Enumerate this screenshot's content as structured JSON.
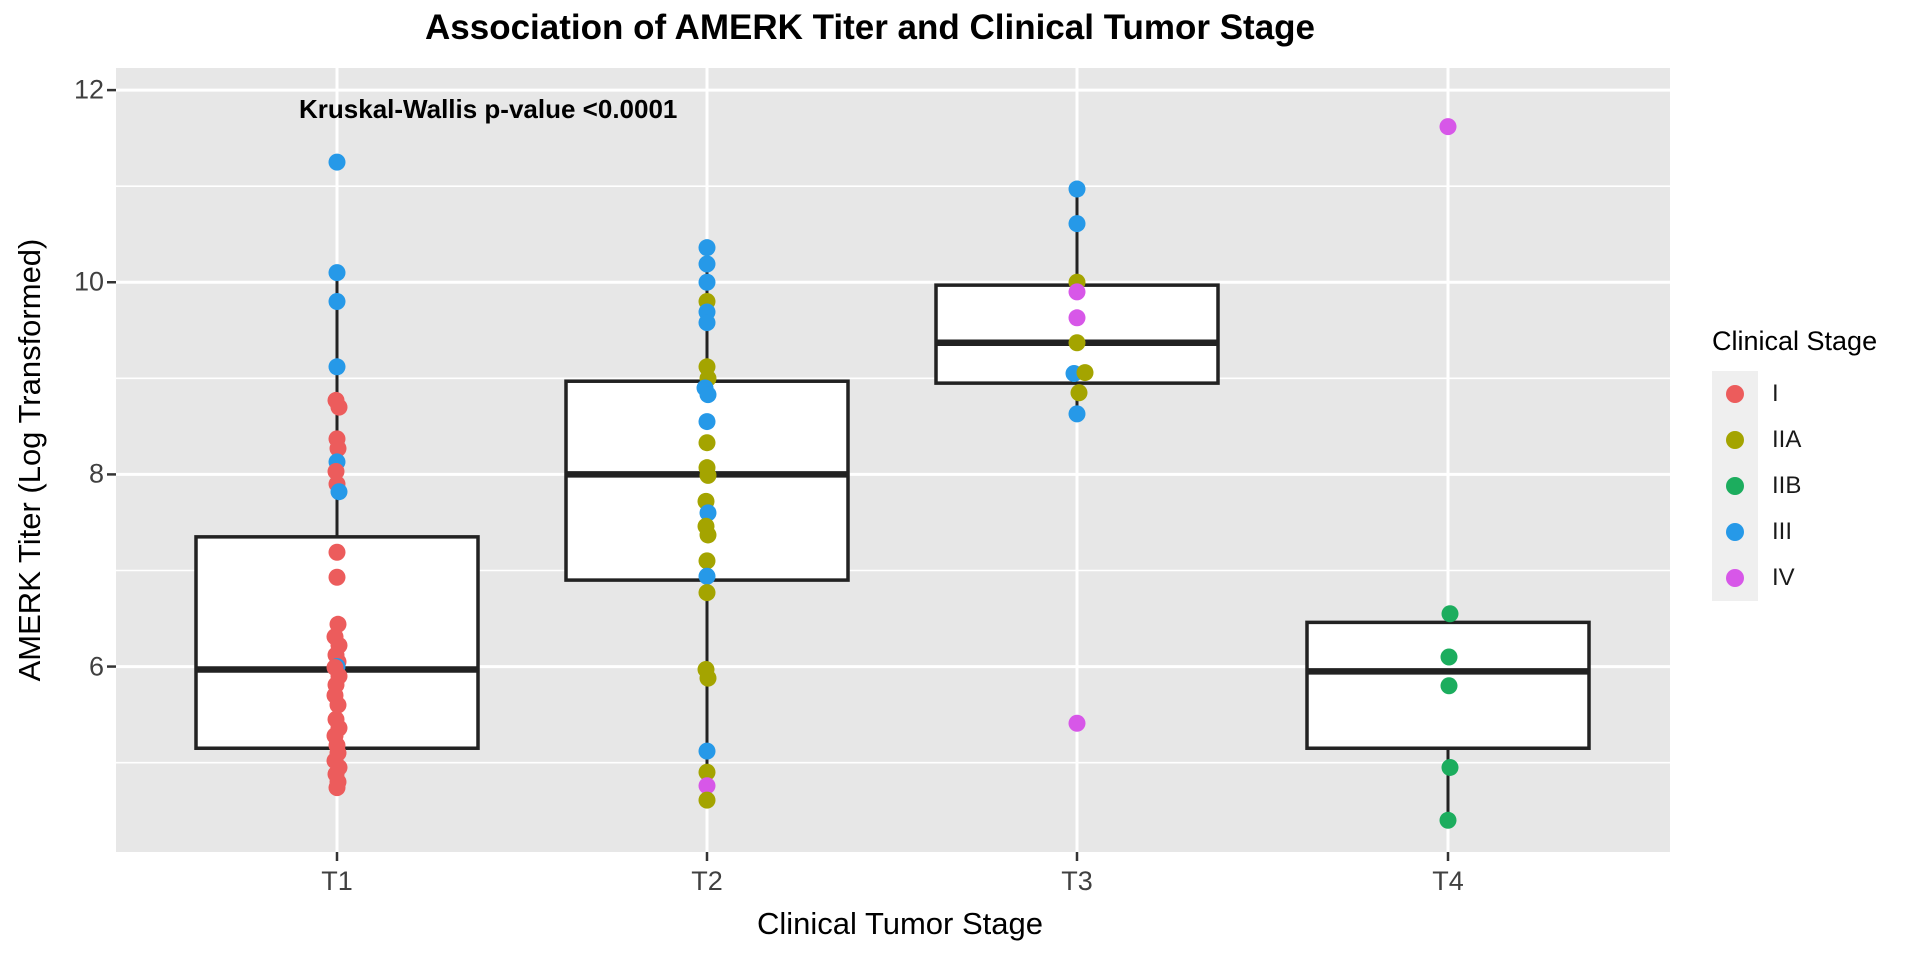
{
  "title": "Association of AMERK Titer and Clinical Tumor Stage",
  "annotation": "Kruskal-Wallis p-value <0.0001",
  "x_axis": {
    "label": "Clinical Tumor Stage",
    "tick_labels": [
      "T1",
      "T2",
      "T3",
      "T4"
    ]
  },
  "y_axis": {
    "label": "AMERK Titer (Log Transformed)",
    "tick_labels": [
      "12",
      "10",
      "8",
      "6"
    ],
    "tick_values": [
      12,
      10,
      8,
      6
    ]
  },
  "legend": {
    "title": "Clinical Stage",
    "items": [
      {
        "label": "I",
        "color": "#EC5C5C"
      },
      {
        "label": "IIA",
        "color": "#A4A400"
      },
      {
        "label": "IIB",
        "color": "#1CAD5E"
      },
      {
        "label": "III",
        "color": "#2699E8"
      },
      {
        "label": "IV",
        "color": "#D757E8"
      }
    ]
  },
  "chart_data": {
    "type": "boxplot-with-jittered-points",
    "title": "Association of AMERK Titer and Clinical Tumor Stage",
    "xlabel": "Clinical Tumor Stage",
    "ylabel": "AMERK Titer (Log Transformed)",
    "categories": [
      "T1",
      "T2",
      "T3",
      "T4"
    ],
    "ylim": [
      4.07,
      12.23
    ],
    "major_gridlines_y": [
      6,
      8,
      10,
      12
    ],
    "minor_gridlines_y": [
      5,
      7,
      9,
      11
    ],
    "grid": "on",
    "legend_position": "right",
    "annotation": "Kruskal-Wallis p-value <0.0001",
    "groups": [
      {
        "category": "T1",
        "box": {
          "q1": 5.15,
          "median": 5.97,
          "q3": 7.35,
          "whisker_low": 4.74,
          "whisker_high": 10.1
        },
        "points": [
          [
            "III",
            11.25,
            0
          ],
          [
            "III",
            10.1,
            0
          ],
          [
            "III",
            9.8,
            0
          ],
          [
            "III",
            9.12,
            0
          ],
          [
            "I",
            8.77,
            -1
          ],
          [
            "I",
            8.7,
            2
          ],
          [
            "I",
            8.37,
            0
          ],
          [
            "I",
            8.27,
            1
          ],
          [
            "III",
            8.13,
            0
          ],
          [
            "I",
            8.03,
            -1
          ],
          [
            "I",
            7.9,
            0
          ],
          [
            "III",
            7.82,
            2
          ],
          [
            "I",
            7.19,
            0
          ],
          [
            "I",
            6.93,
            0
          ],
          [
            "I",
            6.44,
            1
          ],
          [
            "I",
            6.31,
            -2
          ],
          [
            "I",
            6.22,
            2
          ],
          [
            "I",
            6.12,
            -1
          ],
          [
            "I",
            6.05,
            1
          ],
          [
            "III",
            6.0,
            0
          ],
          [
            "I",
            5.99,
            -2
          ],
          [
            "I",
            5.9,
            2
          ],
          [
            "I",
            5.81,
            -1
          ],
          [
            "I",
            5.7,
            -2
          ],
          [
            "I",
            5.6,
            1
          ],
          [
            "I",
            5.45,
            -1
          ],
          [
            "I",
            5.36,
            2
          ],
          [
            "I",
            5.28,
            -2
          ],
          [
            "I",
            5.18,
            0
          ],
          [
            "I",
            5.1,
            1
          ],
          [
            "I",
            5.02,
            -2
          ],
          [
            "I",
            4.95,
            2
          ],
          [
            "I",
            4.88,
            -1
          ],
          [
            "I",
            4.8,
            1
          ],
          [
            "I",
            4.74,
            0
          ]
        ]
      },
      {
        "category": "T2",
        "box": {
          "q1": 6.9,
          "median": 8.0,
          "q3": 8.97,
          "whisker_low": 4.61,
          "whisker_high": 10.36
        },
        "points": [
          [
            "III",
            10.36,
            0
          ],
          [
            "III",
            10.19,
            0
          ],
          [
            "III",
            10.0,
            0
          ],
          [
            "IIA",
            9.8,
            0
          ],
          [
            "III",
            9.69,
            0
          ],
          [
            "III",
            9.58,
            0
          ],
          [
            "IIA",
            9.12,
            0
          ],
          [
            "IIA",
            9.0,
            1
          ],
          [
            "III",
            8.9,
            -2
          ],
          [
            "III",
            8.83,
            1
          ],
          [
            "III",
            8.55,
            0
          ],
          [
            "IIA",
            8.33,
            0
          ],
          [
            "IIA",
            8.07,
            0
          ],
          [
            "IIA",
            7.99,
            1
          ],
          [
            "IIA",
            7.72,
            -1
          ],
          [
            "III",
            7.6,
            1
          ],
          [
            "IIA",
            7.46,
            -1
          ],
          [
            "IIA",
            7.37,
            1
          ],
          [
            "IIA",
            7.1,
            0
          ],
          [
            "III",
            6.94,
            0
          ],
          [
            "IIA",
            6.77,
            0
          ],
          [
            "IIA",
            5.97,
            -1
          ],
          [
            "IIA",
            5.88,
            1
          ],
          [
            "III",
            5.12,
            0
          ],
          [
            "IIA",
            4.9,
            0
          ],
          [
            "IV",
            4.76,
            0
          ],
          [
            "IIA",
            4.61,
            0
          ]
        ]
      },
      {
        "category": "T3",
        "box": {
          "q1": 8.95,
          "median": 9.37,
          "q3": 9.97,
          "whisker_low": 8.63,
          "whisker_high": 10.97
        },
        "points": [
          [
            "III",
            10.97,
            0
          ],
          [
            "III",
            10.61,
            0
          ],
          [
            "IIA",
            10.0,
            0
          ],
          [
            "IV",
            9.9,
            0
          ],
          [
            "IV",
            9.63,
            0
          ],
          [
            "IIA",
            9.37,
            0
          ],
          [
            "III",
            9.05,
            -3
          ],
          [
            "IIA",
            9.06,
            8
          ],
          [
            "IIA",
            8.85,
            2
          ],
          [
            "III",
            8.63,
            0
          ],
          [
            "IV",
            5.41,
            0
          ]
        ]
      },
      {
        "category": "T4",
        "box": {
          "q1": 5.15,
          "median": 5.95,
          "q3": 6.46,
          "whisker_low": 4.4,
          "whisker_high": 6.55
        },
        "points": [
          [
            "IV",
            11.62,
            0
          ],
          [
            "IIB",
            6.55,
            2
          ],
          [
            "IIB",
            6.1,
            1
          ],
          [
            "IIB",
            5.8,
            1
          ],
          [
            "IIB",
            4.95,
            2
          ],
          [
            "IIB",
            4.4,
            0
          ]
        ]
      }
    ],
    "stage_colors": {
      "I": "#EC5C5C",
      "IIA": "#A4A400",
      "IIB": "#1CAD5E",
      "III": "#2699E8",
      "IV": "#D757E8"
    },
    "panel_background": "#E7E7E7",
    "gridline_color": "#FFFFFF",
    "box_outline_color": "#222222"
  }
}
